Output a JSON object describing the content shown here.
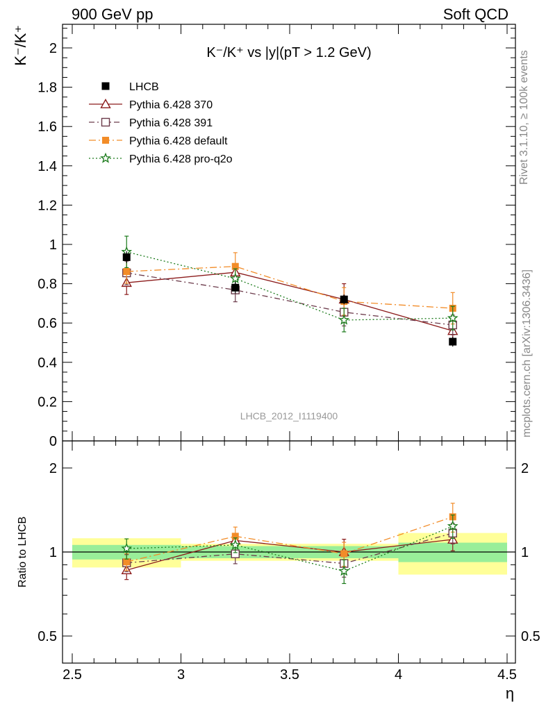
{
  "header": {
    "left": "900 GeV pp",
    "right": "Soft QCD"
  },
  "side_labels": {
    "rivet": "Rivet 3.1.10, ≥ 100k events",
    "mcplots": "mcplots.cern.ch [arXiv:1306.3436]"
  },
  "chart_data": {
    "type": "scatter",
    "title": "K⁻/K⁺ vs |y|(pT > 1.2 GeV)",
    "watermark": "LHCB_2012_I1119400",
    "xlabel": "η",
    "ylabel_top": "K⁻/K⁺",
    "ylabel_bottom": "Ratio to LHCB",
    "x_range": [
      2.5,
      4.5
    ],
    "y_range_top": [
      0,
      2.12
    ],
    "y_range_bottom": [
      0.42,
      2.4
    ],
    "bottom_log_scale": true,
    "x_ticks": [
      "2.5",
      "3",
      "3.5",
      "4",
      "4.5"
    ],
    "y_ticks_top": [
      "0",
      "0.2",
      "0.4",
      "0.6",
      "0.8",
      "1",
      "1.2",
      "1.4",
      "1.6",
      "1.8",
      "2"
    ],
    "y_ticks_bottom": [
      "0.5",
      "1",
      "2"
    ],
    "legend_position": "top-left",
    "data": {
      "name": "LHCB",
      "x": [
        2.75,
        3.25,
        3.75,
        4.25
      ],
      "xerr": [
        0.25,
        0.25,
        0.25,
        0.25
      ],
      "y": [
        0.935,
        0.78,
        0.72,
        0.505
      ],
      "yerr": [
        0.03,
        0.03,
        0.025,
        0.025
      ],
      "band_stat": [
        0.06,
        0.05,
        0.05,
        0.08
      ],
      "band_total": [
        0.12,
        0.07,
        0.07,
        0.17
      ],
      "color": "#000000"
    },
    "series": [
      {
        "name": "Pythia 6.428 370",
        "x": [
          2.75,
          3.25,
          3.75,
          4.25
        ],
        "y": [
          0.805,
          0.858,
          0.72,
          0.56
        ],
        "yerr": [
          0.06,
          0.04,
          0.08,
          0.05
        ],
        "color": "#8b1a1a",
        "marker": "triangle-open",
        "dash": ""
      },
      {
        "name": "Pythia 6.428 391",
        "x": [
          2.75,
          3.25,
          3.75,
          4.25
        ],
        "y": [
          0.855,
          0.768,
          0.655,
          0.59
        ],
        "yerr": [
          0.06,
          0.06,
          0.07,
          0.05
        ],
        "color": "#6b3a4a",
        "marker": "square-open",
        "dash": "8,4,2,4"
      },
      {
        "name": "Pythia 6.428 default",
        "x": [
          2.75,
          3.25,
          3.75,
          4.25
        ],
        "y": [
          0.862,
          0.888,
          0.71,
          0.675
        ],
        "yerr": [
          0.06,
          0.07,
          0.07,
          0.08
        ],
        "color": "#f28c28",
        "marker": "square-filled",
        "dash": "10,4,2,4"
      },
      {
        "name": "Pythia 6.428 pro-q2o",
        "x": [
          2.75,
          3.25,
          3.75,
          4.25
        ],
        "y": [
          0.962,
          0.826,
          0.615,
          0.625
        ],
        "yerr": [
          0.08,
          0.05,
          0.06,
          0.06
        ],
        "color": "#1a7a1a",
        "marker": "star",
        "dash": "2,3"
      }
    ],
    "colors": {
      "band_inner": "#99ee99",
      "band_outer": "#ffff99"
    }
  }
}
